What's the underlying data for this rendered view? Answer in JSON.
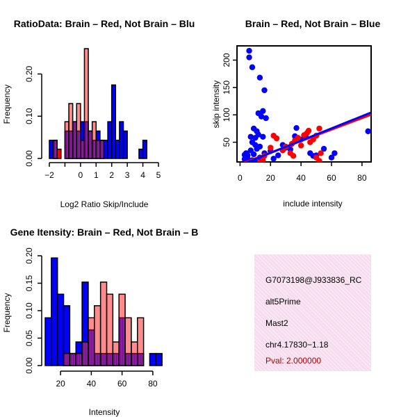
{
  "colors": {
    "red": "#ff0000",
    "blue": "#0000ff",
    "purple": "#8b1fa0",
    "info_bg": "#f7dced",
    "pval": "#b00000"
  },
  "chart_data": [
    {
      "type": "bar",
      "subtype": "overlaid-histogram",
      "title": "RatioData: Brain – Red, Not Brain – Blu",
      "xlabel": "Log2 Ratio Skip/Include",
      "ylabel": "Frequency",
      "xlim": [
        -2,
        5
      ],
      "ylim": [
        0,
        0.26
      ],
      "xticks": [
        -2,
        -1,
        0,
        1,
        2,
        3,
        4,
        5
      ],
      "xtick_labels": [
        "−2",
        "",
        "0",
        "1",
        "2",
        "3",
        "4",
        "5"
      ],
      "yticks": [
        0.0,
        0.1,
        0.2
      ],
      "ytick_labels": [
        "0.00",
        "0.10",
        "0.20"
      ],
      "bin_edges": [
        -2.0,
        -1.75,
        -1.5,
        -1.25,
        -1.0,
        -0.75,
        -0.5,
        -0.25,
        0.0,
        0.25,
        0.5,
        0.75,
        1.0,
        1.25,
        1.5,
        1.75,
        2.0,
        2.25,
        2.5,
        2.75,
        3.0,
        3.25,
        3.5,
        3.75,
        4.0,
        4.25,
        4.5,
        4.75,
        5.0
      ],
      "series": [
        {
          "name": "Brain",
          "color": "red",
          "values": [
            0,
            0.043,
            0.022,
            0,
            0.087,
            0.13,
            0.087,
            0.13,
            0.043,
            0.26,
            0.065,
            0.087,
            0.043,
            0.043,
            0,
            0,
            0,
            0,
            0,
            0,
            0,
            0,
            0,
            0,
            0,
            0,
            0,
            0
          ]
        },
        {
          "name": "Not Brain",
          "color": "blue",
          "values": [
            0.043,
            0.043,
            0,
            0,
            0.065,
            0.065,
            0.087,
            0.065,
            0.087,
            0.087,
            0.065,
            0.043,
            0.065,
            0.043,
            0.043,
            0.087,
            0.174,
            0.043,
            0.087,
            0.065,
            0,
            0,
            0,
            0.022,
            0.043,
            0,
            0,
            0
          ]
        }
      ]
    },
    {
      "type": "scatter",
      "title": "Brain – Red, Not Brain – Blue",
      "xlabel": "include intensity",
      "ylabel": "skip intensity",
      "xlim": [
        -2,
        86
      ],
      "ylim": [
        14,
        226
      ],
      "xticks": [
        0,
        20,
        40,
        60,
        80
      ],
      "yticks": [
        50,
        100,
        150,
        200
      ],
      "series": [
        {
          "name": "Brain",
          "color": "red",
          "points": [
            [
              13,
              13
            ],
            [
              15,
              17
            ],
            [
              16,
              25
            ],
            [
              20,
              40
            ],
            [
              22,
              62
            ],
            [
              24,
              57
            ],
            [
              28,
              35
            ],
            [
              30,
              42
            ],
            [
              34,
              47
            ],
            [
              36,
              53
            ],
            [
              38,
              58
            ],
            [
              40,
              44
            ],
            [
              42,
              63
            ],
            [
              44,
              67
            ],
            [
              45,
              71
            ],
            [
              46,
              50
            ],
            [
              48,
              55
            ],
            [
              50,
              62
            ],
            [
              52,
              75
            ],
            [
              53,
              30
            ],
            [
              52,
              16
            ],
            [
              50,
              22
            ],
            [
              33,
              30
            ],
            [
              35,
              25
            ]
          ],
          "fit": {
            "intercept": 10.0,
            "slope": 1.05
          }
        },
        {
          "name": "Not Brain",
          "color": "blue",
          "points": [
            [
              6,
              217
            ],
            [
              6,
              205
            ],
            [
              8,
              187
            ],
            [
              13,
              168
            ],
            [
              16,
              145
            ],
            [
              15,
              107
            ],
            [
              12,
              103
            ],
            [
              14,
              97
            ],
            [
              17,
              94
            ],
            [
              9,
              75
            ],
            [
              11,
              70
            ],
            [
              7,
              60
            ],
            [
              10,
              58
            ],
            [
              12,
              64
            ],
            [
              15,
              60
            ],
            [
              8,
              50
            ],
            [
              10,
              45
            ],
            [
              13,
              42
            ],
            [
              11,
              38
            ],
            [
              7,
              35
            ],
            [
              4,
              30
            ],
            [
              3,
              27
            ],
            [
              4,
              23
            ],
            [
              5,
              20
            ],
            [
              8,
              17
            ],
            [
              10,
              15
            ],
            [
              3,
              19
            ],
            [
              5,
              26
            ],
            [
              9,
              28
            ],
            [
              13,
              22
            ],
            [
              16,
              30
            ],
            [
              20,
              34
            ],
            [
              22,
              20
            ],
            [
              25,
              26
            ],
            [
              28,
              45
            ],
            [
              30,
              40
            ],
            [
              33,
              37
            ],
            [
              36,
              61
            ],
            [
              37,
              76
            ],
            [
              40,
              55
            ],
            [
              43,
              61
            ],
            [
              46,
              30
            ],
            [
              48,
              25
            ],
            [
              50,
              26
            ],
            [
              55,
              38
            ],
            [
              60,
              22
            ],
            [
              62,
              30
            ],
            [
              84,
              70
            ]
          ],
          "fit": {
            "intercept": 8.0,
            "slope": 1.12
          }
        }
      ]
    },
    {
      "type": "bar",
      "subtype": "overlaid-histogram",
      "title": "Gene Itensity: Brain – Red, Not Brain – B",
      "xlabel": "Intensity",
      "ylabel": "Frequency",
      "xlim": [
        10,
        90
      ],
      "ylim": [
        0,
        0.2
      ],
      "xticks": [
        20,
        40,
        60,
        80
      ],
      "yticks": [
        0.0,
        0.05,
        0.1,
        0.15,
        0.2
      ],
      "ytick_labels": [
        "0.00",
        "0.05",
        "0.10",
        "0.15",
        "0.20"
      ],
      "bin_edges": [
        10,
        14,
        18,
        22,
        26,
        30,
        34,
        38,
        42,
        46,
        50,
        54,
        58,
        62,
        66,
        70,
        74,
        78,
        82,
        86,
        90
      ],
      "series": [
        {
          "name": "Brain",
          "color": "red",
          "values": [
            0,
            0,
            0,
            0.022,
            0.022,
            0.022,
            0.043,
            0.087,
            0.109,
            0.152,
            0.13,
            0.043,
            0.13,
            0.087,
            0.043,
            0.087,
            0,
            0,
            0,
            0
          ]
        },
        {
          "name": "Not Brain",
          "color": "blue",
          "values": [
            0.087,
            0.196,
            0.13,
            0.109,
            0.022,
            0.043,
            0.152,
            0.065,
            0.022,
            0.022,
            0.022,
            0.022,
            0.087,
            0.022,
            0.022,
            0.022,
            0,
            0.022,
            0.022,
            0
          ]
        }
      ]
    }
  ],
  "info": {
    "line1": "G7073198@J933836_RC",
    "line2": "alt5Prime",
    "line3": "Mast2",
    "line4": "chr4.17830−1.18",
    "line5": "Pval: 2.000000"
  }
}
